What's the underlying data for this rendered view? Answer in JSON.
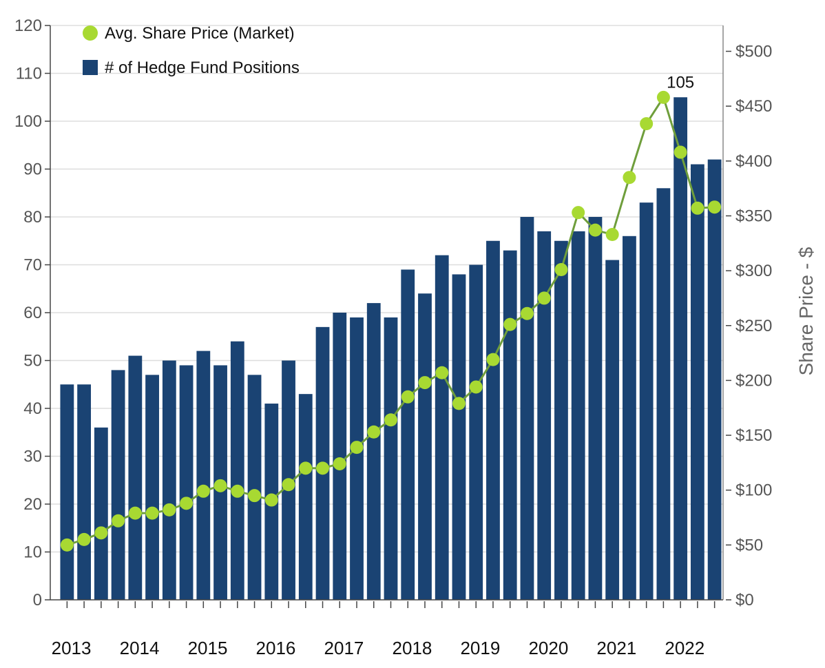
{
  "chart_data": {
    "type": "bar",
    "title": "",
    "xlabel": "",
    "ylabel": "",
    "y2label": "Share Price - $",
    "ylim": [
      0,
      120
    ],
    "y2lim": [
      0,
      500
    ],
    "grid": true,
    "legend_position": "top-left",
    "y_ticks": [
      "0",
      "10",
      "20",
      "30",
      "40",
      "50",
      "60",
      "70",
      "80",
      "90",
      "100",
      "110",
      "120"
    ],
    "y2_ticks": [
      "$0",
      "$50",
      "$100",
      "$150",
      "$200",
      "$250",
      "$300",
      "$350",
      "$400",
      "$450",
      "$500"
    ],
    "x_year_labels": [
      "2013",
      "2014",
      "2015",
      "2016",
      "2017",
      "2018",
      "2019",
      "2020",
      "2021",
      "2022"
    ],
    "quarters": 39,
    "series": [
      {
        "name": "# of Hedge Fund Positions",
        "axis": "left",
        "kind": "bar",
        "color": "#1a4373",
        "values": [
          45,
          45,
          36,
          48,
          51,
          47,
          50,
          49,
          52,
          49,
          54,
          47,
          41,
          50,
          43,
          57,
          60,
          59,
          62,
          59,
          69,
          64,
          72,
          68,
          70,
          75,
          73,
          80,
          77,
          75,
          77,
          80,
          71,
          76,
          83,
          86,
          105,
          91,
          92
        ]
      },
      {
        "name": "Avg. Share Price (Market)",
        "axis": "right",
        "kind": "line",
        "color": "#a8d932",
        "line_color": "#6f9e3c",
        "values": [
          50,
          55,
          61,
          72,
          79,
          79,
          82,
          88,
          99,
          104,
          99,
          95,
          91,
          105,
          120,
          120,
          124,
          139,
          153,
          164,
          185,
          198,
          207,
          179,
          194,
          219,
          251,
          261,
          275,
          301,
          353,
          337,
          333,
          385,
          434,
          458,
          408,
          357,
          358
        ]
      }
    ],
    "annotations": [
      {
        "series": "# of Hedge Fund Positions",
        "index": 36,
        "text": "105"
      }
    ]
  },
  "legend": {
    "line_label": "Avg. Share Price (Market)",
    "bar_label": "# of Hedge Fund Positions"
  }
}
